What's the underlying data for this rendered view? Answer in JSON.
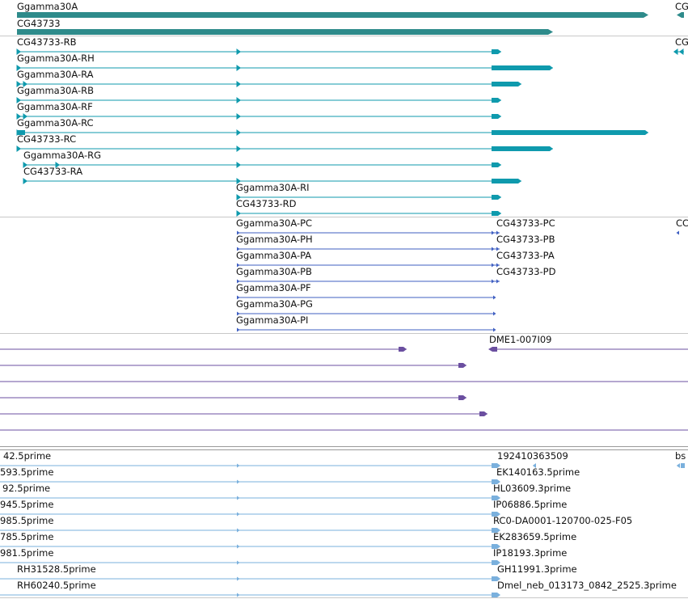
{
  "gene_track": {
    "labels": [
      "Ggamma30A",
      "CG43733",
      "CG"
    ],
    "color": "#2e8b8b"
  },
  "transcript_track": {
    "labels": [
      "CG43733-RB",
      "Ggamma30A-RH",
      "Ggamma30A-RA",
      "Ggamma30A-RB",
      "Ggamma30A-RF",
      "Ggamma30A-RC",
      "CG43733-RC",
      "Ggamma30A-RG",
      "CG43733-RA",
      "Ggamma30A-RI",
      "CG43733-RD",
      "CG"
    ],
    "color": "#0f9aad"
  },
  "protein_track": {
    "left_labels": [
      "Ggamma30A-PC",
      "Ggamma30A-PH",
      "Ggamma30A-PA",
      "Ggamma30A-PB",
      "Ggamma30A-PF",
      "Ggamma30A-PG",
      "Ggamma30A-PI"
    ],
    "right_labels": [
      "CG43733-PC",
      "CG43733-PB",
      "CG43733-PA",
      "CG43733-PD",
      "CC"
    ],
    "color": "#3f5fc2"
  },
  "clone_track": {
    "labels": [
      "DME1-007I09"
    ],
    "color": "#6b4fa0"
  },
  "est_track": {
    "left_labels": [
      "42.5prime",
      "593.5prime",
      "92.5prime",
      "945.5prime",
      "985.5prime",
      "785.5prime",
      "981.5prime",
      "RH31528.5prime",
      "RH60240.5prime"
    ],
    "right_labels": [
      "192410363509",
      "EK140163.5prime",
      "HL03609.3prime",
      "IP06886.5prime",
      "RC0-DA0001-120700-025-F05",
      "EK283659.5prime",
      "IP18193.3prime",
      "GH11991.3prime",
      "Dmel_neb_013173_0842_2525.3prime",
      "bs"
    ],
    "color": "#7ab0dd"
  }
}
